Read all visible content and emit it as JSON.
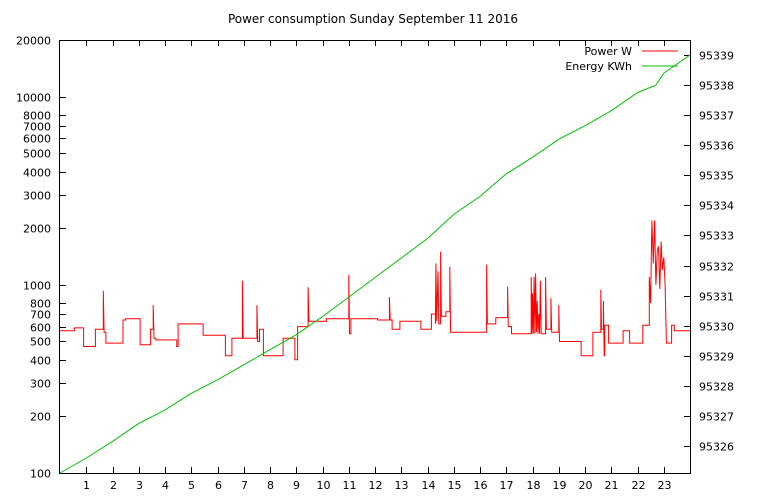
{
  "chart_data": {
    "type": "line",
    "title": "Power consumption Sunday September 11 2016",
    "x": {
      "range": [
        0,
        24
      ],
      "ticks": [
        1,
        2,
        3,
        4,
        5,
        6,
        7,
        8,
        9,
        10,
        11,
        12,
        13,
        14,
        15,
        16,
        17,
        18,
        19,
        20,
        21,
        22,
        23
      ],
      "tick_labels": [
        "1",
        "2",
        "3",
        "4",
        "5",
        "6",
        "7",
        "8",
        "9",
        "10",
        "11",
        "12",
        "13",
        "14",
        "15",
        "16",
        "17",
        "18",
        "19",
        "20",
        "21",
        "22",
        "23"
      ],
      "grid": false
    },
    "y_left": {
      "scale": "log",
      "range": [
        100,
        20000
      ],
      "ticks": [
        100,
        200,
        300,
        400,
        500,
        600,
        700,
        800,
        1000,
        2000,
        3000,
        4000,
        5000,
        6000,
        7000,
        8000,
        10000,
        20000
      ],
      "tick_labels": [
        "100",
        "200",
        "300",
        "400",
        "500",
        "600",
        "700",
        "800",
        "1000",
        "2000",
        "3000",
        "4000",
        "5000",
        "6000",
        "7000",
        "8000",
        "10000",
        "20000"
      ]
    },
    "y_right": {
      "scale": "linear",
      "range": [
        95325.1,
        95339.5
      ],
      "ticks": [
        95326,
        95327,
        95328,
        95329,
        95330,
        95331,
        95332,
        95333,
        95334,
        95335,
        95336,
        95337,
        95338,
        95339
      ],
      "tick_labels": [
        "95326",
        "95327",
        "95328",
        "95329",
        "95330",
        "95331",
        "95332",
        "95333",
        "95334",
        "95335",
        "95336",
        "95337",
        "95338",
        "95339"
      ]
    },
    "legend_position": "top-right",
    "series": [
      {
        "name": "Power W",
        "axis": "left",
        "color": "#ff0000",
        "points": [
          [
            0,
            570
          ],
          [
            0.55,
            570
          ],
          [
            0.55,
            590
          ],
          [
            0.9,
            590
          ],
          [
            0.9,
            470
          ],
          [
            1.35,
            470
          ],
          [
            1.35,
            580
          ],
          [
            1.65,
            580
          ],
          [
            1.65,
            930
          ],
          [
            1.68,
            560
          ],
          [
            1.75,
            560
          ],
          [
            1.75,
            490
          ],
          [
            2.4,
            490
          ],
          [
            2.4,
            650
          ],
          [
            2.5,
            650
          ],
          [
            2.5,
            660
          ],
          [
            3.05,
            660
          ],
          [
            3.05,
            480
          ],
          [
            3.45,
            480
          ],
          [
            3.45,
            580
          ],
          [
            3.55,
            580
          ],
          [
            3.55,
            780
          ],
          [
            3.58,
            520
          ],
          [
            3.65,
            520
          ],
          [
            3.65,
            510
          ],
          [
            4.45,
            510
          ],
          [
            4.45,
            470
          ],
          [
            4.5,
            470
          ],
          [
            4.5,
            620
          ],
          [
            5.45,
            620
          ],
          [
            5.45,
            540
          ],
          [
            6.3,
            540
          ],
          [
            6.3,
            420
          ],
          [
            6.55,
            420
          ],
          [
            6.55,
            520
          ],
          [
            6.95,
            520
          ],
          [
            6.95,
            1050
          ],
          [
            6.98,
            520
          ],
          [
            7.5,
            520
          ],
          [
            7.5,
            780
          ],
          [
            7.53,
            500
          ],
          [
            7.6,
            500
          ],
          [
            7.6,
            580
          ],
          [
            7.75,
            580
          ],
          [
            7.75,
            420
          ],
          [
            8.5,
            420
          ],
          [
            8.5,
            520
          ],
          [
            8.95,
            520
          ],
          [
            8.95,
            400
          ],
          [
            9.05,
            400
          ],
          [
            9.05,
            600
          ],
          [
            9.45,
            600
          ],
          [
            9.45,
            970
          ],
          [
            9.48,
            640
          ],
          [
            10.15,
            640
          ],
          [
            10.15,
            660
          ],
          [
            11.0,
            660
          ],
          [
            11.0,
            1130
          ],
          [
            11.03,
            550
          ],
          [
            11.08,
            550
          ],
          [
            11.08,
            660
          ],
          [
            12.1,
            660
          ],
          [
            12.1,
            650
          ],
          [
            12.55,
            650
          ],
          [
            12.55,
            860
          ],
          [
            12.58,
            650
          ],
          [
            12.65,
            650
          ],
          [
            12.65,
            580
          ],
          [
            12.95,
            580
          ],
          [
            12.95,
            640
          ],
          [
            13.75,
            640
          ],
          [
            13.75,
            580
          ],
          [
            14.15,
            580
          ],
          [
            14.15,
            700
          ],
          [
            14.3,
            700
          ],
          [
            14.3,
            620
          ],
          [
            14.32,
            1300
          ],
          [
            14.35,
            640
          ],
          [
            14.4,
            1180
          ],
          [
            14.43,
            620
          ],
          [
            14.5,
            620
          ],
          [
            14.5,
            1500
          ],
          [
            14.53,
            680
          ],
          [
            14.7,
            680
          ],
          [
            14.7,
            720
          ],
          [
            14.85,
            720
          ],
          [
            14.85,
            1250
          ],
          [
            14.88,
            560
          ],
          [
            16.25,
            560
          ],
          [
            16.25,
            1280
          ],
          [
            16.28,
            620
          ],
          [
            16.6,
            620
          ],
          [
            16.6,
            670
          ],
          [
            17.05,
            670
          ],
          [
            17.05,
            980
          ],
          [
            17.08,
            600
          ],
          [
            17.2,
            600
          ],
          [
            17.2,
            550
          ],
          [
            17.95,
            550
          ],
          [
            17.95,
            1100
          ],
          [
            17.98,
            550
          ],
          [
            18.0,
            900
          ],
          [
            18.03,
            550
          ],
          [
            18.06,
            1100
          ],
          [
            18.09,
            550
          ],
          [
            18.12,
            1150
          ],
          [
            18.15,
            560
          ],
          [
            18.18,
            820
          ],
          [
            18.21,
            550
          ],
          [
            18.24,
            700
          ],
          [
            18.27,
            550
          ],
          [
            18.3,
            1050
          ],
          [
            18.33,
            550
          ],
          [
            18.5,
            550
          ],
          [
            18.5,
            1100
          ],
          [
            18.53,
            580
          ],
          [
            18.7,
            580
          ],
          [
            18.7,
            850
          ],
          [
            18.73,
            560
          ],
          [
            19.0,
            560
          ],
          [
            19.0,
            780
          ],
          [
            19.03,
            500
          ],
          [
            19.85,
            500
          ],
          [
            19.85,
            420
          ],
          [
            20.3,
            420
          ],
          [
            20.3,
            560
          ],
          [
            20.6,
            560
          ],
          [
            20.6,
            940
          ],
          [
            20.63,
            580
          ],
          [
            20.7,
            580
          ],
          [
            20.7,
            820
          ],
          [
            20.73,
            420
          ],
          [
            20.75,
            420
          ],
          [
            20.75,
            610
          ],
          [
            20.9,
            610
          ],
          [
            20.9,
            490
          ],
          [
            21.45,
            490
          ],
          [
            21.45,
            570
          ],
          [
            21.7,
            570
          ],
          [
            21.7,
            490
          ],
          [
            22.2,
            490
          ],
          [
            22.2,
            610
          ],
          [
            22.45,
            610
          ],
          [
            22.45,
            1100
          ],
          [
            22.5,
            800
          ],
          [
            22.55,
            2200
          ],
          [
            22.6,
            1300
          ],
          [
            22.65,
            2200
          ],
          [
            22.7,
            1000
          ],
          [
            22.75,
            1500
          ],
          [
            22.8,
            1600
          ],
          [
            22.85,
            950
          ],
          [
            22.9,
            1700
          ],
          [
            22.95,
            1200
          ],
          [
            23.0,
            1400
          ],
          [
            23.05,
            1000
          ],
          [
            23.1,
            490
          ],
          [
            23.3,
            490
          ],
          [
            23.3,
            610
          ],
          [
            23.4,
            610
          ],
          [
            23.4,
            570
          ],
          [
            24,
            570
          ]
        ]
      },
      {
        "name": "Energy KWh",
        "axis": "right",
        "color": "#00c000",
        "points": [
          [
            0,
            95325.1
          ],
          [
            1,
            95325.6
          ],
          [
            2,
            95326.15
          ],
          [
            3,
            95326.75
          ],
          [
            4,
            95327.2
          ],
          [
            5,
            95327.75
          ],
          [
            6,
            95328.2
          ],
          [
            7,
            95328.7
          ],
          [
            8,
            95329.2
          ],
          [
            9,
            95329.7
          ],
          [
            10,
            95330.3
          ],
          [
            11,
            95330.95
          ],
          [
            12,
            95331.6
          ],
          [
            13,
            95332.25
          ],
          [
            14,
            95332.9
          ],
          [
            15,
            95333.7
          ],
          [
            16,
            95334.3
          ],
          [
            17,
            95335.05
          ],
          [
            18,
            95335.6
          ],
          [
            19,
            95336.2
          ],
          [
            20,
            95336.65
          ],
          [
            21,
            95337.15
          ],
          [
            22,
            95337.75
          ],
          [
            22.7,
            95338.0
          ],
          [
            23,
            95338.4
          ],
          [
            24,
            95339.0
          ]
        ]
      }
    ]
  }
}
